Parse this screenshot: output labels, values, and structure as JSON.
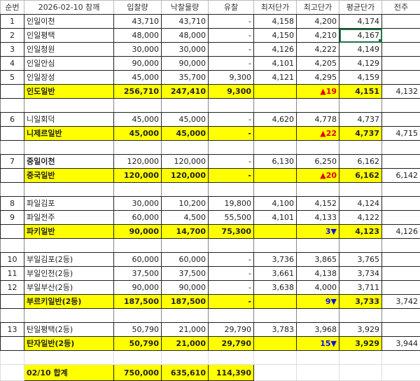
{
  "header": [
    "순번",
    "2026-02-10 참깨",
    "입찰량",
    "낙찰물량",
    "유찰",
    "최저단가",
    "최고단가",
    "평균단가",
    "전주"
  ],
  "colors": {
    "subtotal_bg": "#ffff00",
    "up": "#e00000",
    "down": "#1010e0",
    "selection": "#217346"
  },
  "rows": [
    {
      "type": "item",
      "no": "1",
      "name": "인일이천",
      "bid": "43,710",
      "won": "43,710",
      "fail": "-",
      "min": "4,158",
      "max": "4,200",
      "avg": "4,174",
      "prev": ""
    },
    {
      "type": "item",
      "no": "2",
      "name": "인일평택",
      "bid": "48,000",
      "won": "48,000",
      "fail": "-",
      "min": "4,150",
      "max": "4,210",
      "avg": "4,167",
      "prev": "",
      "selected": true
    },
    {
      "type": "item",
      "no": "3",
      "name": "인일청원",
      "bid": "30,000",
      "won": "30,000",
      "fail": "-",
      "min": "4,126",
      "max": "4,222",
      "avg": "4,149",
      "prev": ""
    },
    {
      "type": "item",
      "no": "4",
      "name": "인일안심",
      "bid": "90,000",
      "won": "90,000",
      "fail": "-",
      "min": "4,101",
      "max": "4,205",
      "avg": "4,129",
      "prev": ""
    },
    {
      "type": "item",
      "no": "5",
      "name": "인일장성",
      "bid": "45,000",
      "won": "35,700",
      "fail": "9,300",
      "min": "4,121",
      "max": "4,295",
      "avg": "4,159",
      "prev": ""
    },
    {
      "type": "sub",
      "name": "인도일반",
      "bid": "256,710",
      "won": "247,410",
      "fail": "9,300",
      "change": "19",
      "dir": "up",
      "avg": "4,151",
      "prev": "4,132"
    },
    {
      "type": "blank"
    },
    {
      "type": "item",
      "no": "6",
      "name": "니일회덕",
      "bid": "45,000",
      "won": "45,000",
      "fail": "-",
      "min": "4,620",
      "max": "4,778",
      "avg": "4,737",
      "prev": ""
    },
    {
      "type": "sub",
      "name": "니제르일반",
      "bid": "45,000",
      "won": "45,000",
      "fail": "-",
      "change": "22",
      "dir": "up",
      "avg": "4,737",
      "prev": "4,715"
    },
    {
      "type": "blank"
    },
    {
      "type": "item",
      "no": "7",
      "name": "중일이천",
      "bold": true,
      "bid": "120,000",
      "won": "120,000",
      "fail": "-",
      "min": "6,130",
      "max": "6,250",
      "avg": "6,162",
      "prev": ""
    },
    {
      "type": "sub",
      "name": "중국일반",
      "bid": "120,000",
      "won": "120,000",
      "fail": "-",
      "change": "20",
      "dir": "up",
      "avg": "6,162",
      "prev": "6,142"
    },
    {
      "type": "blank"
    },
    {
      "type": "item",
      "no": "8",
      "name": "파일김포",
      "bid": "30,000",
      "won": "10,200",
      "fail": "19,800",
      "min": "4,100",
      "max": "4,152",
      "avg": "4,124",
      "prev": ""
    },
    {
      "type": "item",
      "no": "9",
      "name": "파일전주",
      "bid": "60,000",
      "won": "4,500",
      "fail": "55,500",
      "min": "4,101",
      "max": "4,133",
      "avg": "4,122",
      "prev": ""
    },
    {
      "type": "sub",
      "name": "파키일반",
      "bid": "90,000",
      "won": "14,700",
      "fail": "75,300",
      "change": "3",
      "dir": "down",
      "avg": "4,123",
      "prev": "4,126"
    },
    {
      "type": "blank"
    },
    {
      "type": "item",
      "no": "10",
      "name": "부일김포(2등)",
      "bid": "60,000",
      "won": "60,000",
      "fail": "-",
      "min": "3,736",
      "max": "3,865",
      "avg": "3,765",
      "prev": ""
    },
    {
      "type": "item",
      "no": "11",
      "name": "부일인천(2등)",
      "bid": "37,500",
      "won": "37,500",
      "fail": "-",
      "min": "3,661",
      "max": "4,138",
      "avg": "3,734",
      "prev": ""
    },
    {
      "type": "item",
      "no": "12",
      "name": "부일부산(2등)",
      "bid": "90,000",
      "won": "90,000",
      "fail": "-",
      "min": "3,638",
      "max": "4,000",
      "avg": "3,711",
      "prev": ""
    },
    {
      "type": "sub",
      "name": "부르키일반(2등)",
      "bid": "187,500",
      "won": "187,500",
      "fail": "-",
      "change": "9",
      "dir": "down",
      "avg": "3,733",
      "prev": "3,742"
    },
    {
      "type": "blank"
    },
    {
      "type": "item",
      "no": "13",
      "name": "탄일평택(2등)",
      "bid": "50,790",
      "won": "21,000",
      "fail": "29,790",
      "min": "3,783",
      "max": "3,968",
      "avg": "3,929",
      "prev": ""
    },
    {
      "type": "sub",
      "name": "탄자일반(2등)",
      "bid": "50,790",
      "won": "21,000",
      "fail": "29,790",
      "change": "15",
      "dir": "down",
      "avg": "3,929",
      "prev": "3,944"
    },
    {
      "type": "after"
    },
    {
      "type": "total",
      "name": "02/10 합계",
      "bid": "750,000",
      "won": "635,610",
      "fail": "114,390"
    }
  ]
}
